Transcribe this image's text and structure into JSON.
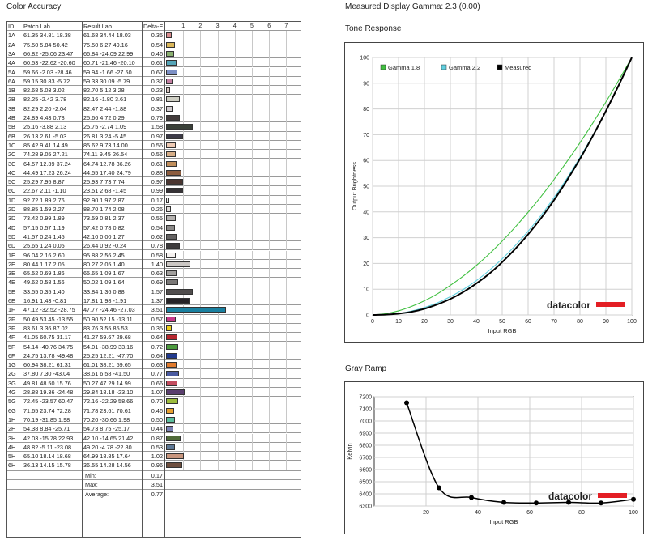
{
  "headings": {
    "color_accuracy": "Color Accuracy",
    "gamma_title": "Measured Display Gamma: 2.3 (0.00)",
    "tone_response": "Tone Response",
    "gray_ramp": "Gray Ramp"
  },
  "table": {
    "headers": [
      "ID",
      "Patch Lab",
      "Result Lab",
      "Delta-E"
    ],
    "scale_ticks": [
      "1",
      "2",
      "3",
      "4",
      "5",
      "6",
      "7"
    ],
    "rows": [
      {
        "id": "1A",
        "patch": "61.35  34.81  18.38",
        "result": "61.68  34.44  18.03",
        "de": "0.35",
        "color": "#d98b8e"
      },
      {
        "id": "2A",
        "patch": "75.50  5.84  50.42",
        "result": "75.50  6.27  49.16",
        "de": "0.54",
        "color": "#d9b65a"
      },
      {
        "id": "3A",
        "patch": "66.82 -25.06  23.47",
        "result": "66.84 -24.09  22.99",
        "de": "0.46",
        "color": "#8ab070"
      },
      {
        "id": "4A",
        "patch": "60.53 -22.62 -20.60",
        "result": "60.71 -21.46 -20.10",
        "de": "0.61",
        "color": "#55a5b8"
      },
      {
        "id": "5A",
        "patch": "59.66  -2.03 -28.46",
        "result": "59.94  -1.66 -27.50",
        "de": "0.67",
        "color": "#7c8fc4"
      },
      {
        "id": "6A",
        "patch": "59.15  30.83  -5.72",
        "result": "59.33  30.09  -5.79",
        "de": "0.37",
        "color": "#c47fa2"
      },
      {
        "id": "1B",
        "patch": "82.68  5.03  3.02",
        "result": "82.70  5.12  3.28",
        "de": "0.23",
        "color": "#d8c6c2"
      },
      {
        "id": "2B",
        "patch": "82.25  -2.42  3.78",
        "result": "82.16  -1.80  3.61",
        "de": "0.81",
        "color": "#cfcfc4"
      },
      {
        "id": "3B",
        "patch": "82.29  2.20  -2.04",
        "result": "82.47  2.44  -1.88",
        "de": "0.37",
        "color": "#d2ccd0"
      },
      {
        "id": "4B",
        "patch": "24.89  4.43  0.78",
        "result": "25.66  4.72  0.29",
        "de": "0.79",
        "color": "#433b3b"
      },
      {
        "id": "5B",
        "patch": "25.16  -3.88  2.13",
        "result": "25.75  -2.74  1.09",
        "de": "1.58",
        "color": "#394038"
      },
      {
        "id": "6B",
        "patch": "26.13  2.61  -5.03",
        "result": "26.81  3.24  -5.45",
        "de": "0.97",
        "color": "#3c3a47"
      },
      {
        "id": "1C",
        "patch": "85.42  9.41  14.49",
        "result": "85.62  9.73  14.00",
        "de": "0.56",
        "color": "#efcbb5"
      },
      {
        "id": "2C",
        "patch": "74.28  9.05  27.21",
        "result": "74.11  9.45  26.54",
        "de": "0.56",
        "color": "#d6ae88"
      },
      {
        "id": "3C",
        "patch": "64.57  12.39  37.24",
        "result": "64.74  12.78  36.26",
        "de": "0.61",
        "color": "#c08e5c"
      },
      {
        "id": "4C",
        "patch": "44.49  17.23  26.24",
        "result": "44.55  17.40  24.79",
        "de": "0.88",
        "color": "#8c5d3f"
      },
      {
        "id": "5C",
        "patch": "25.29  7.95  8.87",
        "result": "25.93  7.73  7.74",
        "de": "0.97",
        "color": "#4a3530"
      },
      {
        "id": "6C",
        "patch": "22.67  2.11  -1.10",
        "result": "23.51  2.68  -1.45",
        "de": "0.99",
        "color": "#353235"
      },
      {
        "id": "1D",
        "patch": "92.72  1.89  2.76",
        "result": "92.90  1.97  2.87",
        "de": "0.17",
        "color": "#ececea"
      },
      {
        "id": "2D",
        "patch": "88.85  1.59  2.27",
        "result": "88.70  1.74  2.08",
        "de": "0.26",
        "color": "#e0dcda"
      },
      {
        "id": "3D",
        "patch": "73.42  0.99  1.89",
        "result": "73.59  0.81  2.37",
        "de": "0.55",
        "color": "#b6b3b1"
      },
      {
        "id": "4D",
        "patch": "57.15  0.57  1.19",
        "result": "57.42  0.78  0.82",
        "de": "0.54",
        "color": "#8c8a89"
      },
      {
        "id": "5D",
        "patch": "41.57  0.24  1.45",
        "result": "42.10  0.00  1.27",
        "de": "0.62",
        "color": "#646262"
      },
      {
        "id": "6D",
        "patch": "25.65  1.24  0.05",
        "result": "26.44  0.92  -0.24",
        "de": "0.78",
        "color": "#3d3b3c"
      },
      {
        "id": "1E",
        "patch": "96.04  2.16  2.60",
        "result": "95.88  2.56  2.45",
        "de": "0.58",
        "color": "#f6f2f0"
      },
      {
        "id": "2E",
        "patch": "80.44  1.17  2.05",
        "result": "80.27  2.05  1.40",
        "de": "1.40",
        "color": "#cbc7c4"
      },
      {
        "id": "3E",
        "patch": "65.52  0.69  1.86",
        "result": "65.65  1.09  1.67",
        "de": "0.63",
        "color": "#a19f9d"
      },
      {
        "id": "4E",
        "patch": "49.62  0.58  1.56",
        "result": "50.02  1.09  1.64",
        "de": "0.69",
        "color": "#7a7877"
      },
      {
        "id": "5E",
        "patch": "33.55  0.35  1.40",
        "result": "33.84  1.36  0.88",
        "de": "1.57",
        "color": "#504d4d"
      },
      {
        "id": "6E",
        "patch": "16.91  1.43  -0.81",
        "result": "17.81  1.98  -1.91",
        "de": "1.37",
        "color": "#262327"
      },
      {
        "id": "1F",
        "patch": "47.12 -32.52 -28.75",
        "result": "47.77 -24.46 -27.03",
        "de": "3.51",
        "color": "#1a80a0"
      },
      {
        "id": "2F",
        "patch": "50.49  53.45 -13.55",
        "result": "50.90  52.15 -13.11",
        "de": "0.57",
        "color": "#c8388a"
      },
      {
        "id": "3F",
        "patch": "83.61  3.36  87.02",
        "result": "83.76  3.55  85.53",
        "de": "0.35",
        "color": "#eed01a"
      },
      {
        "id": "4F",
        "patch": "41.05  60.75  31.17",
        "result": "41.27  59.67  29.68",
        "de": "0.64",
        "color": "#b5262f"
      },
      {
        "id": "5F",
        "patch": "54.14 -40.76  34.75",
        "result": "54.01 -38.99  33.16",
        "de": "0.72",
        "color": "#4c9a3e"
      },
      {
        "id": "6F",
        "patch": "24.75  13.78 -49.48",
        "result": "25.25  12.21 -47.70",
        "de": "0.64",
        "color": "#223a8e"
      },
      {
        "id": "1G",
        "patch": "60.94  38.21  61.31",
        "result": "61.01  38.21  59.65",
        "de": "0.63",
        "color": "#e07b2e"
      },
      {
        "id": "2G",
        "patch": "37.80  7.30 -43.04",
        "result": "38.61  6.58 -41.50",
        "de": "0.77",
        "color": "#4a5aa0"
      },
      {
        "id": "3G",
        "patch": "49.81  48.50  15.76",
        "result": "50.27  47.29  14.99",
        "de": "0.66",
        "color": "#c24c5e"
      },
      {
        "id": "4G",
        "patch": "28.88  19.36 -24.48",
        "result": "29.84  18.18 -23.10",
        "de": "1.07",
        "color": "#5a3e6e"
      },
      {
        "id": "5G",
        "patch": "72.45 -23.57  60.47",
        "result": "72.16 -22.29  58.66",
        "de": "0.70",
        "color": "#9cbc3c"
      },
      {
        "id": "6G",
        "patch": "71.65  23.74  72.28",
        "result": "71.78  23.61  70.61",
        "de": "0.46",
        "color": "#e8a030"
      },
      {
        "id": "1H",
        "patch": "70.19 -31.85  1.98",
        "result": "70.20 -30.66  1.98",
        "de": "0.50",
        "color": "#5cbf9e"
      },
      {
        "id": "2H",
        "patch": "54.38  8.84 -25.71",
        "result": "54.73  8.75 -25.17",
        "de": "0.44",
        "color": "#7a80b4"
      },
      {
        "id": "3H",
        "patch": "42.03 -15.78  22.93",
        "result": "42.10 -14.65  21.42",
        "de": "0.87",
        "color": "#506a38"
      },
      {
        "id": "4H",
        "patch": "48.82  -5.11 -23.08",
        "result": "49.20  -4.78 -22.80",
        "de": "0.53",
        "color": "#5e7895"
      },
      {
        "id": "5H",
        "patch": "65.10  18.14  18.68",
        "result": "64.99  18.85  17.64",
        "de": "1.02",
        "color": "#c8967e"
      },
      {
        "id": "6H",
        "patch": "36.13  14.15  15.78",
        "result": "36.55  14.28  14.56",
        "de": "0.96",
        "color": "#6e4e3e"
      }
    ],
    "summary": [
      {
        "label": "Min:",
        "value": "0.17"
      },
      {
        "label": "Max:",
        "value": "3.51"
      },
      {
        "label": "Average:",
        "value": "0.77"
      }
    ]
  },
  "chart_data": [
    {
      "type": "line",
      "title": "Tone Response",
      "xlabel": "Input RGB",
      "ylabel": "Output Brightness",
      "xlim": [
        0,
        100
      ],
      "ylim": [
        0,
        100
      ],
      "xticks": [
        "0",
        "10",
        "20",
        "30",
        "40",
        "50",
        "60",
        "70",
        "80",
        "90",
        "100"
      ],
      "yticks": [
        "0",
        "10",
        "20",
        "30",
        "40",
        "50",
        "60",
        "70",
        "80",
        "90",
        "100"
      ],
      "grid": true,
      "legend": "top-left",
      "x": [
        0,
        5,
        10,
        15,
        20,
        25,
        30,
        35,
        40,
        45,
        50,
        55,
        60,
        65,
        70,
        75,
        80,
        85,
        90,
        95,
        100
      ],
      "series": [
        {
          "name": "Gamma 1.8",
          "color": "#40c040",
          "values": [
            0,
            0.5,
            1.6,
            3.3,
            5.5,
            8.2,
            11.5,
            15.1,
            19.2,
            23.7,
            28.7,
            34.1,
            39.9,
            46.0,
            52.6,
            59.6,
            66.9,
            74.6,
            82.7,
            91.2,
            100
          ]
        },
        {
          "name": "Gamma 2.2",
          "color": "#60d0e0",
          "values": [
            0,
            0.1,
            0.6,
            1.5,
            2.9,
            4.7,
            7.1,
            9.9,
            13.3,
            17.3,
            21.8,
            26.9,
            32.5,
            38.7,
            45.6,
            53.1,
            61.2,
            69.9,
            79.3,
            89.3,
            100
          ]
        },
        {
          "name": "Measured",
          "color": "#000000",
          "values": [
            0,
            0.1,
            0.5,
            1.2,
            2.4,
            4.1,
            6.2,
            8.9,
            12.2,
            16.0,
            20.5,
            25.6,
            31.3,
            37.6,
            44.6,
            52.3,
            60.6,
            69.6,
            79.2,
            89.3,
            100
          ]
        }
      ],
      "watermark": "datacolor"
    },
    {
      "type": "line",
      "title": "Gray Ramp",
      "xlabel": "Input RGB",
      "ylabel": "Kelvin",
      "xlim": [
        0,
        100
      ],
      "ylim": [
        6300,
        7200
      ],
      "xticks": [
        "20",
        "40",
        "60",
        "80",
        "100"
      ],
      "yticks": [
        "6300",
        "6400",
        "6500",
        "6600",
        "6700",
        "6800",
        "6900",
        "7000",
        "7100",
        "7200"
      ],
      "grid": true,
      "x": [
        12.5,
        25,
        37.5,
        50,
        62.5,
        75,
        87.5,
        100
      ],
      "series": [
        {
          "name": "",
          "color": "#000000",
          "values": [
            7150,
            6450,
            6370,
            6330,
            6325,
            6330,
            6325,
            6355
          ]
        }
      ],
      "watermark": "datacolor"
    }
  ]
}
